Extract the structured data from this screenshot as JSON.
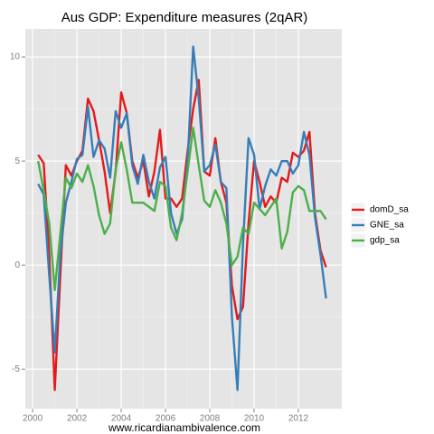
{
  "chart_data": {
    "type": "line",
    "title": "Aus GDP: Expenditure measures (2qAR)",
    "x_label": "www.ricardianambivalence.com",
    "x": [
      2000.25,
      2000.5,
      2000.75,
      2001,
      2001.25,
      2001.5,
      2001.75,
      2002,
      2002.25,
      2002.5,
      2002.75,
      2003,
      2003.25,
      2003.5,
      2003.75,
      2004,
      2004.25,
      2004.5,
      2004.75,
      2005,
      2005.25,
      2005.5,
      2005.75,
      2006,
      2006.25,
      2006.5,
      2006.75,
      2007,
      2007.25,
      2007.5,
      2007.75,
      2008,
      2008.25,
      2008.5,
      2008.75,
      2009,
      2009.25,
      2009.5,
      2009.75,
      2010,
      2010.25,
      2010.5,
      2010.75,
      2011,
      2011.25,
      2011.5,
      2011.75,
      2012,
      2012.25,
      2012.5,
      2012.75,
      2013,
      2013.25
    ],
    "series": [
      {
        "name": "domD_sa",
        "color": "#e41a1c",
        "values": [
          5.3,
          4.9,
          0.5,
          -6.0,
          -0.5,
          4.8,
          4.3,
          5.0,
          5.5,
          8.0,
          7.4,
          6.0,
          4.5,
          2.5,
          4.5,
          8.3,
          7.3,
          5.0,
          4.2,
          5.0,
          3.3,
          4.5,
          6.5,
          3.2,
          3.2,
          2.8,
          3.2,
          5.5,
          7.5,
          8.9,
          4.5,
          4.3,
          6.1,
          4.0,
          3.0,
          -1.0,
          -2.6,
          -2.0,
          2.0,
          5.0,
          4.0,
          2.8,
          3.3,
          3.0,
          4.2,
          4.0,
          5.4,
          5.2,
          5.5,
          6.4,
          2.5,
          0.7,
          -0.1
        ]
      },
      {
        "name": "GNE_sa",
        "color": "#377eb8",
        "values": [
          3.9,
          3.4,
          -0.5,
          -4.2,
          0.5,
          3.0,
          4.0,
          5.1,
          5.3,
          7.6,
          5.2,
          6.0,
          5.6,
          4.2,
          7.4,
          6.6,
          7.3,
          4.8,
          3.9,
          5.3,
          4.0,
          3.2,
          4.7,
          5.2,
          2.5,
          1.5,
          2.2,
          5.0,
          10.5,
          8.0,
          4.5,
          4.8,
          5.8,
          4.0,
          3.7,
          -2.5,
          -6.0,
          1.0,
          6.1,
          5.3,
          2.7,
          3.8,
          4.6,
          4.3,
          5.0,
          5.0,
          4.4,
          4.8,
          6.4,
          5.3,
          2.3,
          0.5,
          -1.6
        ]
      },
      {
        "name": "gdp_sa",
        "color": "#4daf4a",
        "values": [
          5.0,
          3.6,
          2.0,
          -1.2,
          1.5,
          4.2,
          3.7,
          4.4,
          4.0,
          4.8,
          3.8,
          2.4,
          1.5,
          2.0,
          4.6,
          5.9,
          4.6,
          3.0,
          3.0,
          3.0,
          2.8,
          2.6,
          4.0,
          3.8,
          1.8,
          1.2,
          2.5,
          4.5,
          6.6,
          4.8,
          3.1,
          2.8,
          3.6,
          3.0,
          2.0,
          0.0,
          0.4,
          1.8,
          1.5,
          3.0,
          2.7,
          2.4,
          2.8,
          3.2,
          0.8,
          1.6,
          3.5,
          3.8,
          3.6,
          2.6,
          2.6,
          2.6,
          2.2
        ]
      }
    ],
    "xlim": [
      1999.67,
      2013.96
    ],
    "xticks": [
      2000,
      2002,
      2004,
      2006,
      2008,
      2010,
      2012
    ],
    "ylim": [
      -6.9,
      11.35
    ],
    "yticks": [
      -5,
      0,
      5,
      10
    ],
    "grid": true,
    "legend": "right"
  }
}
